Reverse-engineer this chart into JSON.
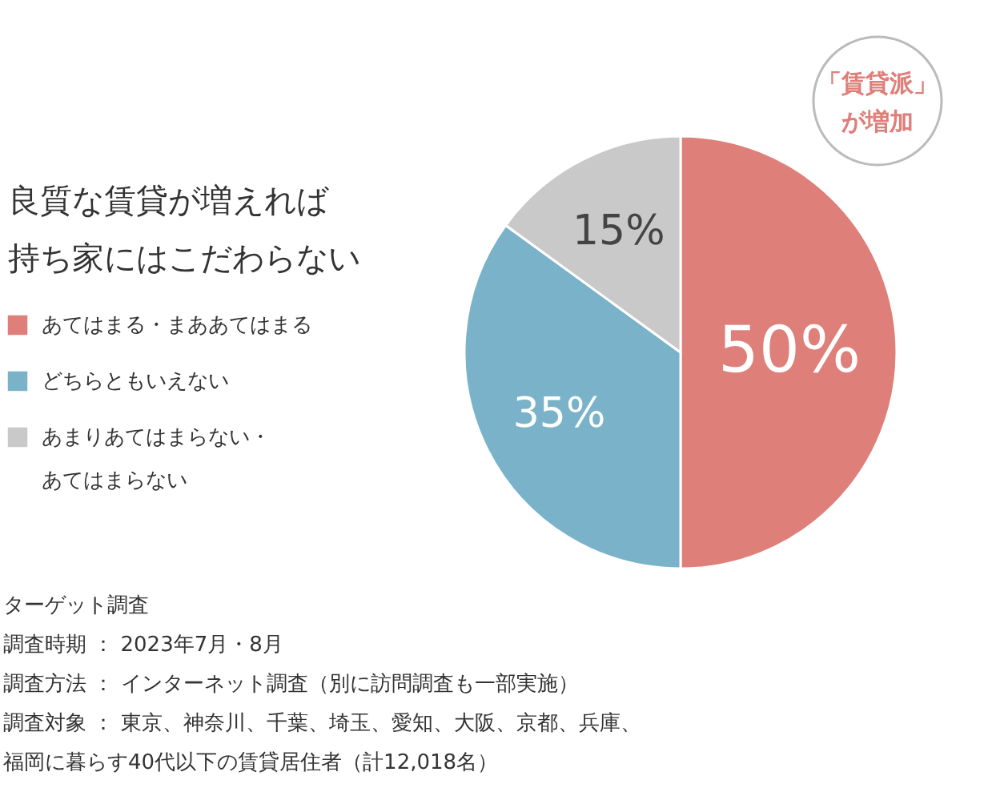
{
  "chart_data": {
    "type": "pie",
    "title": "良質な賃貸が増えれば",
    "subtitle": "持ち家にはこだわらない",
    "categories": [
      "あてはまる・まああてはまる",
      "どちらともいえない",
      "あまりあてはまらない・あてはまらない"
    ],
    "values": [
      50,
      35,
      15
    ],
    "colors": [
      "#de7f7a",
      "#7ab3c9",
      "#c9c9c9"
    ],
    "value_labels": [
      "50%",
      "35%",
      "15%"
    ],
    "legend": "left",
    "annotations": [
      "「賃貸派」が増加",
      "ターゲット調査",
      "調査時期 ： 2023年7月・8月",
      "調査方法 ： インターネット調査（別に訪問調査も一部実施）",
      "調査対象 ： 東京、神奈川、千葉、埼玉、愛知、大阪、京都、兵庫、福岡に暮らす40代以下の賃貸居住者（計12,018名）"
    ]
  }
}
